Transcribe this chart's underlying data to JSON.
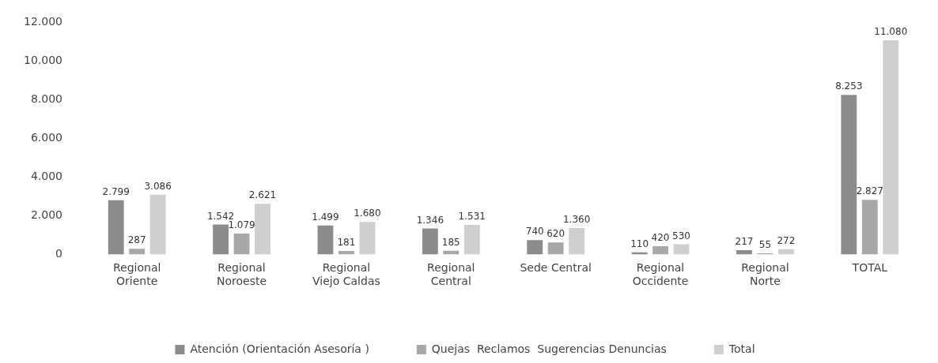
{
  "chart_data": {
    "type": "bar",
    "categories": [
      "Regional Oriente",
      "Regional Noroeste",
      "Regional Viejo Caldas",
      "Regional Central",
      "Sede Central",
      "Regional Occidente",
      "Regional Norte",
      "TOTAL"
    ],
    "series": [
      {
        "name": "Atención (Orientación Asesoría )",
        "color": "#8c8c8c",
        "values": [
          2799,
          1542,
          1499,
          1346,
          740,
          110,
          217,
          8253
        ],
        "value_labels": [
          "2.799",
          "1.542",
          "1.499",
          "1.346",
          "740",
          "110",
          "217",
          "8.253"
        ]
      },
      {
        "name": "Quejas  Reclamos  Sugerencias Denuncias",
        "color": "#a8a8a8",
        "values": [
          287,
          1079,
          181,
          185,
          620,
          420,
          55,
          2827
        ],
        "value_labels": [
          "287",
          "1.079",
          "181",
          "185",
          "620",
          "420",
          "55",
          "2.827"
        ]
      },
      {
        "name": "Total",
        "color": "#cfcfcf",
        "values": [
          3086,
          2621,
          1680,
          1531,
          1360,
          530,
          272,
          11080
        ],
        "value_labels": [
          "3.086",
          "2.621",
          "1.680",
          "1.531",
          "1.360",
          "530",
          "272",
          "11.080"
        ]
      }
    ],
    "ylim": [
      0,
      12000
    ],
    "yticks": [
      {
        "value": 0,
        "label": "0"
      },
      {
        "value": 2000,
        "label": "2.000"
      },
      {
        "value": 4000,
        "label": "4.000"
      },
      {
        "value": 6000,
        "label": "6.000"
      },
      {
        "value": 8000,
        "label": "8.000"
      },
      {
        "value": 10000,
        "label": "10.000"
      },
      {
        "value": 12000,
        "label": "12.000"
      }
    ],
    "grid": false,
    "legend": "bottom"
  }
}
